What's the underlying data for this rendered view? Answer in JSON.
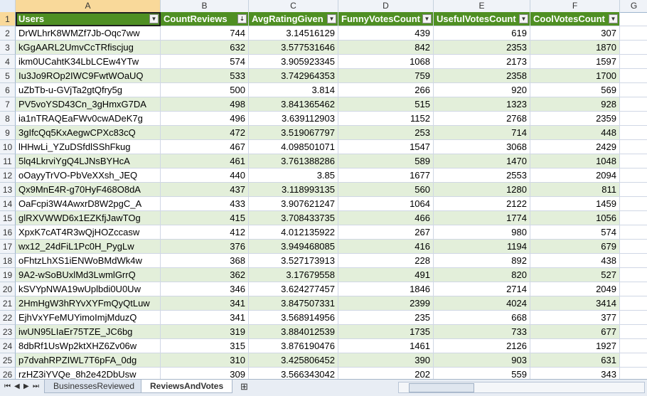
{
  "columns": [
    "A",
    "B",
    "C",
    "D",
    "E",
    "F",
    "G"
  ],
  "headers": [
    "Users",
    "CountReviews",
    "AvgRatingGiven",
    "FunnyVotesCount",
    "UsefulVotesCount",
    "CoolVotesCount"
  ],
  "rows": [
    [
      "DrWLhrK8WMZf7Jb-Oqc7ww",
      "744",
      "3.14516129",
      "439",
      "619",
      "307"
    ],
    [
      "kGgAARL2UmvCcTRfiscjug",
      "632",
      "3.577531646",
      "842",
      "2353",
      "1870"
    ],
    [
      "ikm0UCahtK34LbLCEw4YTw",
      "574",
      "3.905923345",
      "1068",
      "2173",
      "1597"
    ],
    [
      "Iu3Jo9ROp2IWC9FwtWOaUQ",
      "533",
      "3.742964353",
      "759",
      "2358",
      "1700"
    ],
    [
      "uZbTb-u-GVjTa2gtQfry5g",
      "500",
      "3.814",
      "266",
      "920",
      "569"
    ],
    [
      "PV5voYSD43Cn_3gHmxG7DA",
      "498",
      "3.841365462",
      "515",
      "1323",
      "928"
    ],
    [
      "ia1nTRAQEaFWv0cwADeK7g",
      "496",
      "3.639112903",
      "1152",
      "2768",
      "2359"
    ],
    [
      "3gIfcQq5KxAegwCPXc83cQ",
      "472",
      "3.519067797",
      "253",
      "714",
      "448"
    ],
    [
      "lHHwLi_YZuDSfdlSShFkug",
      "467",
      "4.098501071",
      "1547",
      "3068",
      "2429"
    ],
    [
      "5lq4LkrviYgQ4LJNsBYHcA",
      "461",
      "3.761388286",
      "589",
      "1470",
      "1048"
    ],
    [
      "oOayyTrVO-PbVeXXsh_JEQ",
      "440",
      "3.85",
      "1677",
      "2553",
      "2094"
    ],
    [
      "Qx9MnE4R-g70HyF468O8dA",
      "437",
      "3.118993135",
      "560",
      "1280",
      "811"
    ],
    [
      "OaFcpi3W4AwxrD8W2pgC_A",
      "433",
      "3.907621247",
      "1064",
      "2122",
      "1459"
    ],
    [
      "glRXVWWD6x1EZKfjJawTOg",
      "415",
      "3.708433735",
      "466",
      "1774",
      "1056"
    ],
    [
      "XpxK7cAT4R3wQjHOZccasw",
      "412",
      "4.012135922",
      "267",
      "980",
      "574"
    ],
    [
      "wx12_24dFiL1Pc0H_PygLw",
      "376",
      "3.949468085",
      "416",
      "1194",
      "679"
    ],
    [
      "oFhtzLhXS1iENWoBMdWk4w",
      "368",
      "3.527173913",
      "228",
      "892",
      "438"
    ],
    [
      "9A2-wSoBUxlMd3LwmlGrrQ",
      "362",
      "3.17679558",
      "491",
      "820",
      "527"
    ],
    [
      "kSVYpNWA19wUplbdi0U0Uw",
      "346",
      "3.624277457",
      "1846",
      "2714",
      "2049"
    ],
    [
      "2HmHgW3hRYvXYFmQyQtLuw",
      "341",
      "3.847507331",
      "2399",
      "4024",
      "3414"
    ],
    [
      "EjhVxYFeMUYimoImjMduzQ",
      "341",
      "3.568914956",
      "235",
      "668",
      "377"
    ],
    [
      "iwUN95LIaEr75TZE_JC6bg",
      "319",
      "3.884012539",
      "1735",
      "733",
      "677"
    ],
    [
      "8dbRf1UsWp2ktXHZ6Zv06w",
      "315",
      "3.876190476",
      "1461",
      "2126",
      "1927"
    ],
    [
      "p7dvahRPZIWL7T6pFA_0dg",
      "310",
      "3.425806452",
      "390",
      "903",
      "631"
    ],
    [
      "rzHZ3iYVQe_8h2e42DbUsw",
      "309",
      "3.566343042",
      "202",
      "559",
      "343"
    ]
  ],
  "sheet_tabs": [
    "BusinessesReviewed",
    "ReviewsAndVotes"
  ],
  "active_tab": "ReviewsAndVotes",
  "colors": {
    "header_fill": "#4f8f23",
    "band_fill": "#e3efda"
  }
}
